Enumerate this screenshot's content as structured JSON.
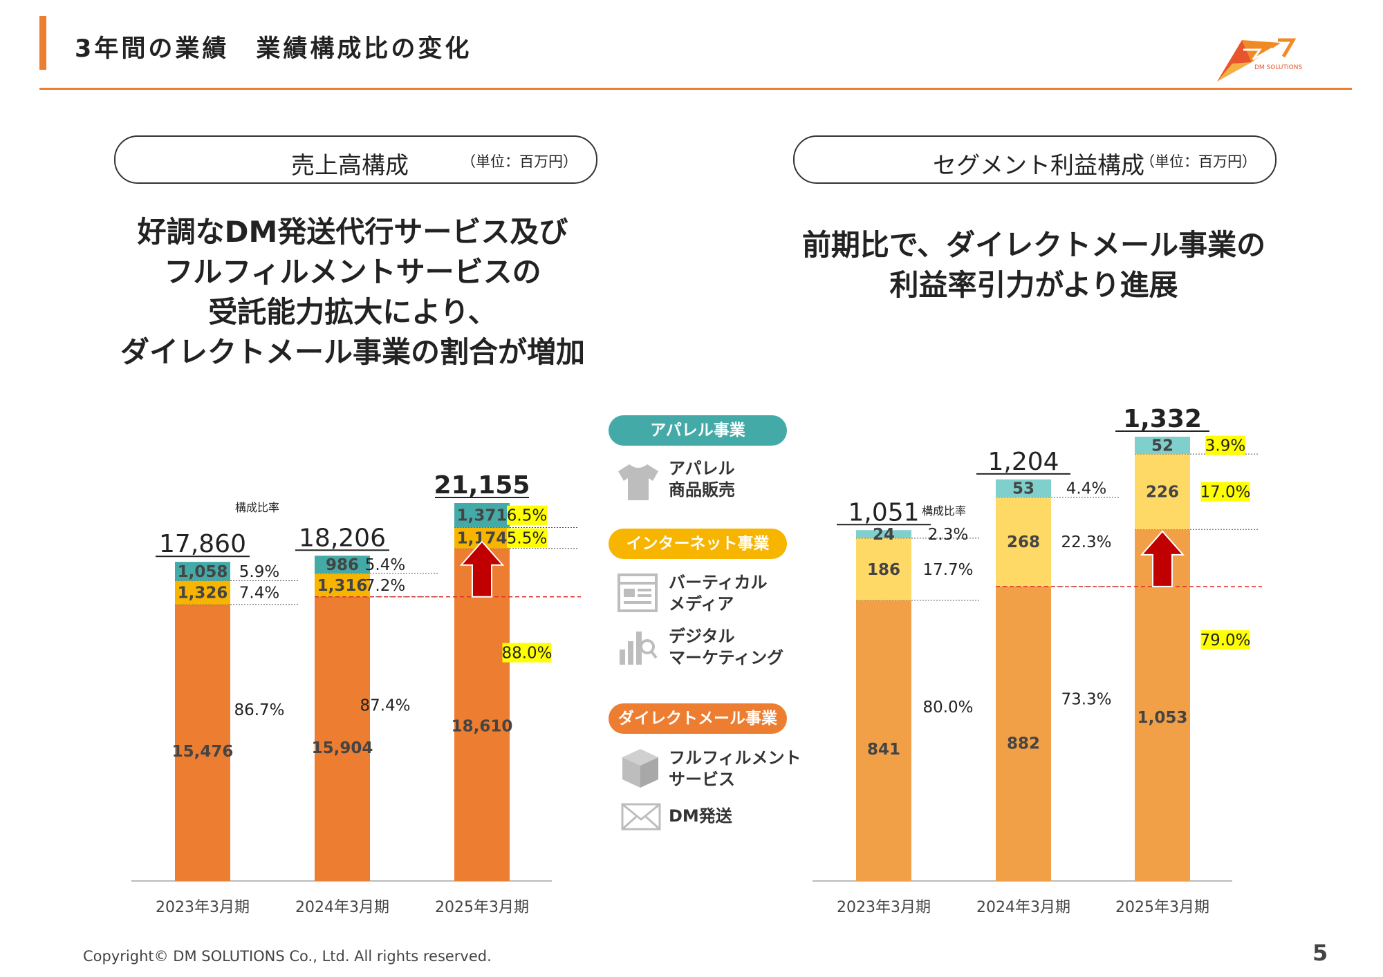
{
  "header": {
    "title": "3年間の業績　業績構成比の変化",
    "logo_text": "DM SOLUTIONS"
  },
  "left_panel": {
    "pill_title": "売上高構成",
    "pill_unit": "（単位：百万円）",
    "headline": [
      "好調なDM発送代行サービス及び",
      "フルフィルメントサービスの",
      "受託能力拡大により、",
      "ダイレクトメール事業の割合が増加"
    ]
  },
  "right_panel": {
    "pill_title": "セグメント利益構成",
    "pill_unit": "（単位：百万円）",
    "headline": [
      "前期比で、ダイレクトメール事業の",
      "利益率引力がより進展"
    ]
  },
  "legend": {
    "apparel": {
      "label": "アパレル事業",
      "items": [
        {
          "text": [
            "アパレル",
            "商品販売"
          ],
          "icon": "tshirt-icon"
        }
      ]
    },
    "internet": {
      "label": "インターネット事業",
      "items": [
        {
          "text": [
            "バーティカル",
            "メディア"
          ],
          "icon": "web-page-icon"
        },
        {
          "text": [
            "デジタル",
            "マーケティング"
          ],
          "icon": "analytics-icon"
        }
      ]
    },
    "dm": {
      "label": "ダイレクトメール事業",
      "items": [
        {
          "text": [
            "フルフィルメント",
            "サービス"
          ],
          "icon": "box-icon"
        },
        {
          "text": [
            "DM発送"
          ],
          "icon": "envelope-icon"
        }
      ]
    }
  },
  "colors": {
    "accent": "#ed7d31",
    "apparel": "#44aaa8",
    "internet": "#f7b500",
    "dm": "#ed7d31"
  },
  "footer": {
    "copyright": "Copyright© DM SOLUTIONS Co., Ltd. All rights reserved.",
    "page": "5"
  },
  "chart_data": [
    {
      "type": "bar",
      "stacked": true,
      "title": "売上高構成",
      "unit": "（単位：百万円）",
      "categories": [
        "2023年3月期",
        "2024年3月期",
        "2025年3月期"
      ],
      "totals": [
        "17,860",
        "18,206",
        "21,155"
      ],
      "ratio_label": "構成比率",
      "series": [
        {
          "name": "ダイレクトメール事業",
          "values": [
            15476,
            15904,
            18610
          ],
          "labels": [
            "15,476",
            "15,904",
            "18,610"
          ],
          "pct": [
            "86.7%",
            "87.4%",
            "88.0%"
          ],
          "color": "#ed7d31"
        },
        {
          "name": "インターネット事業",
          "values": [
            1326,
            1316,
            1174
          ],
          "labels": [
            "1,326",
            "1,316",
            "1,174"
          ],
          "pct": [
            "7.4%",
            "7.2%",
            "5.5%"
          ],
          "color": "#f7b500"
        },
        {
          "name": "アパレル事業",
          "values": [
            1058,
            986,
            1371
          ],
          "labels": [
            "1,058",
            "986",
            "1,371"
          ],
          "pct": [
            "5.9%",
            "5.4%",
            "6.5%"
          ],
          "color": "#44aaa8"
        }
      ]
    },
    {
      "type": "bar",
      "stacked": true,
      "title": "セグメント利益構成",
      "unit": "（単位：百万円）",
      "categories": [
        "2023年3月期",
        "2024年3月期",
        "2025年3月期"
      ],
      "totals": [
        "1,051",
        "1,204",
        "1,332"
      ],
      "ratio_label": "構成比率",
      "series": [
        {
          "name": "ダイレクトメール事業",
          "values": [
            841,
            882,
            1053
          ],
          "labels": [
            "841",
            "882",
            "1,053"
          ],
          "pct": [
            "80.0%",
            "73.3%",
            "79.0%"
          ],
          "color": "#f2a047"
        },
        {
          "name": "インターネット事業",
          "values": [
            186,
            268,
            226
          ],
          "labels": [
            "186",
            "268",
            "226"
          ],
          "pct": [
            "17.7%",
            "22.3%",
            "17.0%"
          ],
          "color": "#ffd966"
        },
        {
          "name": "アパレル事業",
          "values": [
            24,
            53,
            52
          ],
          "labels": [
            "24",
            "53",
            "52"
          ],
          "pct": [
            "2.3%",
            "4.4%",
            "3.9%"
          ],
          "color": "#7fcfcc"
        }
      ]
    }
  ]
}
